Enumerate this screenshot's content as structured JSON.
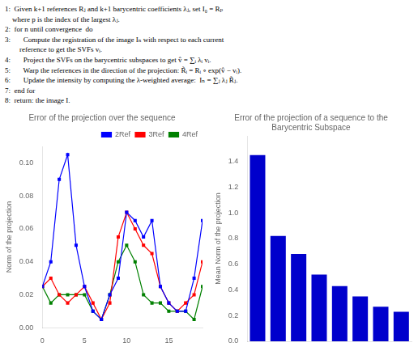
{
  "chart_data": [
    {
      "type": "line",
      "title": "Error of the projection over the sequence",
      "ylabel": "Norm of the projection",
      "annotations": [
        "1:  Given k+1 references Rⱼ and k+1 barycentric coefficients λⱼ, set I₀ = Rₚ",
        "    where p is the index of the largest λⱼ.",
        "2:  for n until convergence  do",
        "3:       Compute the registration of the image Iₙ with respect to each current",
        "        reference to get the SVFs vᵢ.",
        "4:       Project the SVFs on the barycentric subspaces to get v̂ = ∑ᵢ λᵢ vᵢ.",
        "5:       Warp the references in the direction of the projection: R̃ᵢ = Rᵢ ∘ exp(v̂ − vᵢ).",
        "6:       Update the intensity by computing the λ-weighted average:  Iₙ = ∑ⱼ λⱼ R̃ⱼ.",
        "7:  end for",
        "8:  return: the image I."
      ],
      "x": [
        0,
        1,
        2,
        3,
        4,
        5,
        6,
        7,
        8,
        9,
        10,
        11,
        12,
        13,
        14,
        15,
        16,
        17,
        18,
        19
      ],
      "series": [
        {
          "name": "2Ref",
          "color": "blue",
          "marker": "square",
          "values": [
            0.025,
            0.04,
            0.09,
            0.105,
            0.05,
            0.025,
            0.01,
            0.005,
            0.02,
            0.03,
            0.07,
            0.065,
            0.055,
            0.065,
            0.025,
            0.015,
            0.01,
            0.01,
            0.03,
            0.065
          ]
        },
        {
          "name": "3Ref",
          "color": "red",
          "marker": "square",
          "values": [
            0.025,
            0.03,
            0.02,
            0.015,
            0.02,
            0.025,
            0.015,
            0.005,
            0.015,
            0.055,
            0.07,
            0.06,
            0.05,
            0.045,
            0.025,
            0.015,
            0.01,
            0.015,
            0.02,
            0.04
          ]
        },
        {
          "name": "4Ref",
          "color": "green",
          "marker": "square",
          "values": [
            0.025,
            0.015,
            0.02,
            0.02,
            0.02,
            0.02,
            0.01,
            0.005,
            0.02,
            0.04,
            0.05,
            0.04,
            0.02,
            0.015,
            0.015,
            0.01,
            0.01,
            0.01,
            0.005,
            0.025
          ]
        }
      ],
      "xlim": [
        0,
        19
      ],
      "xticks": [
        0,
        5,
        10,
        15
      ],
      "ylim": [
        0,
        0.11
      ],
      "yticks": [
        {
          "value": 0,
          "label": "0.00"
        },
        0.02,
        0.04,
        0.06,
        0.08,
        {
          "value": 0.1,
          "label": "0.10"
        }
      ],
      "legend": "upper right",
      "grid": false
    },
    {
      "type": "bar",
      "title": "Error of the projection of a sequence to the Barycentric Subspace",
      "ylabel": "Mean Norm of the projection",
      "categories": [
        null,
        null,
        null,
        null,
        null,
        null,
        null,
        null
      ],
      "values": [
        1.45,
        0.82,
        0.68,
        0.52,
        0.43,
        0.35,
        0.27,
        0.23
      ],
      "color": "#0000CC",
      "ylim": [
        0,
        1.6
      ],
      "yticks": [
        {
          "value": 0,
          "label": "0.0"
        },
        0.2,
        0.4,
        0.6,
        0.8,
        {
          "value": 1,
          "label": "1.0"
        },
        1.2,
        1.4
      ],
      "tick_labels": "y",
      "grid": false
    }
  ]
}
